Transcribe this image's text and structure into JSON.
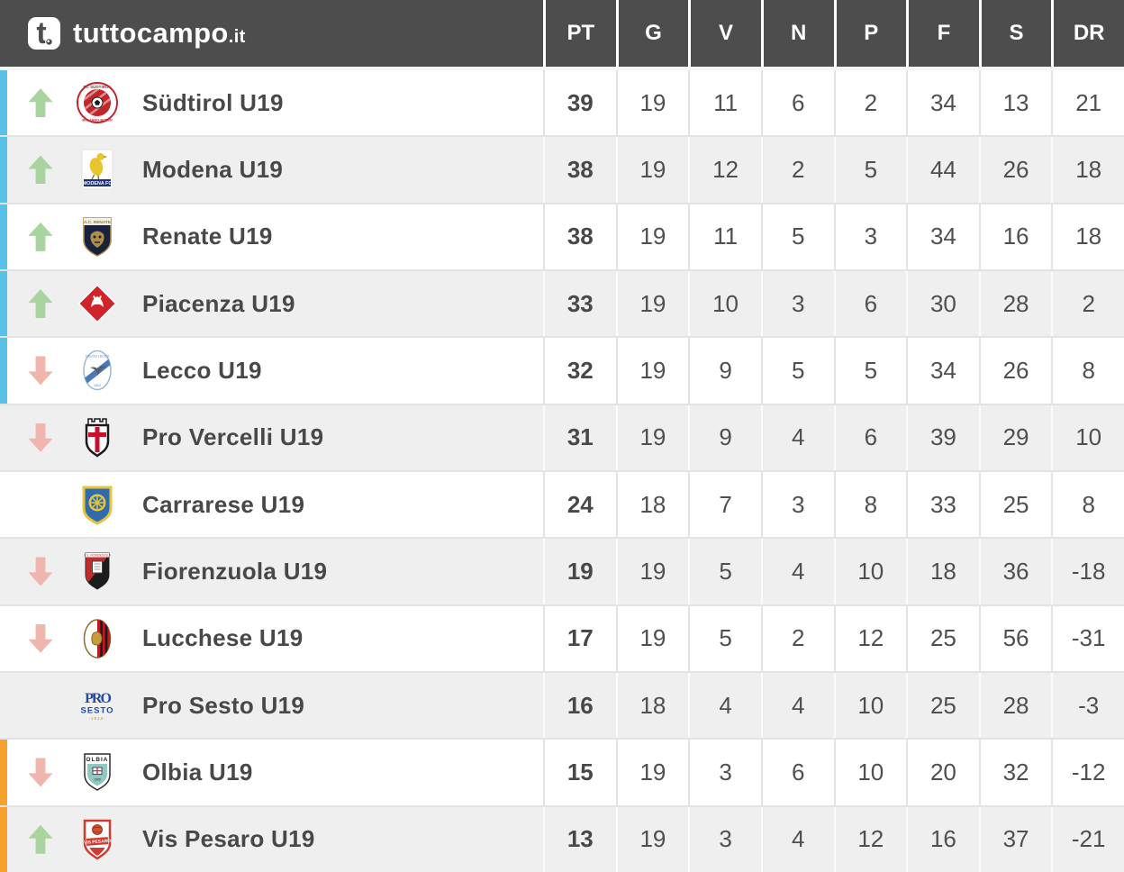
{
  "brand": {
    "name": "tuttocampo",
    "tld": ".it"
  },
  "columns": [
    "PT",
    "G",
    "V",
    "N",
    "P",
    "F",
    "S",
    "DR"
  ],
  "colors": {
    "header_bg": "#4d4d4d",
    "row_bg": "#ffffff",
    "row_alt_bg": "#efefef",
    "separator": "#e3e3e3",
    "promotion_stripe": "#58c1e8",
    "relegation_stripe": "#f4a12d",
    "up_arrow": "#a9d4a0",
    "down_arrow": "#f0b5ac",
    "header_text": "#ffffff",
    "team_text": "#484848",
    "stat_text": "#4f4f4f"
  },
  "rows": [
    {
      "team": "Südtirol U19",
      "logo": "sudtirol-crest",
      "movement": "up",
      "zone": "promotion",
      "stats": [
        39,
        19,
        11,
        6,
        2,
        34,
        13,
        21
      ]
    },
    {
      "team": "Modena U19",
      "logo": "modena-crest",
      "movement": "up",
      "zone": "promotion",
      "stats": [
        38,
        19,
        12,
        2,
        5,
        44,
        26,
        18
      ]
    },
    {
      "team": "Renate U19",
      "logo": "renate-crest",
      "movement": "up",
      "zone": "promotion",
      "stats": [
        38,
        19,
        11,
        5,
        3,
        34,
        16,
        18
      ]
    },
    {
      "team": "Piacenza U19",
      "logo": "piacenza-crest",
      "movement": "up",
      "zone": "promotion",
      "stats": [
        33,
        19,
        10,
        3,
        6,
        30,
        28,
        2
      ]
    },
    {
      "team": "Lecco U19",
      "logo": "lecco-crest",
      "movement": "down",
      "zone": "promotion",
      "stats": [
        32,
        19,
        9,
        5,
        5,
        34,
        26,
        8
      ]
    },
    {
      "team": "Pro Vercelli U19",
      "logo": "pro-vercelli-crest",
      "movement": "down",
      "zone": "none",
      "stats": [
        31,
        19,
        9,
        4,
        6,
        39,
        29,
        10
      ]
    },
    {
      "team": "Carrarese U19",
      "logo": "carrarese-crest",
      "movement": "none",
      "zone": "none",
      "stats": [
        24,
        18,
        7,
        3,
        8,
        33,
        25,
        8
      ]
    },
    {
      "team": "Fiorenzuola U19",
      "logo": "fiorenzuola-crest",
      "movement": "down",
      "zone": "none",
      "stats": [
        19,
        19,
        5,
        4,
        10,
        18,
        36,
        -18
      ]
    },
    {
      "team": "Lucchese U19",
      "logo": "lucchese-crest",
      "movement": "down",
      "zone": "none",
      "stats": [
        17,
        19,
        5,
        2,
        12,
        25,
        56,
        -31
      ]
    },
    {
      "team": "Pro Sesto U19",
      "logo": "pro-sesto-crest",
      "movement": "none",
      "zone": "none",
      "stats": [
        16,
        18,
        4,
        4,
        10,
        25,
        28,
        -3
      ]
    },
    {
      "team": "Olbia U19",
      "logo": "olbia-crest",
      "movement": "down",
      "zone": "relegation",
      "stats": [
        15,
        19,
        3,
        6,
        10,
        20,
        32,
        -12
      ]
    },
    {
      "team": "Vis Pesaro U19",
      "logo": "vis-pesaro-crest",
      "movement": "up",
      "zone": "relegation",
      "stats": [
        13,
        19,
        3,
        4,
        12,
        16,
        37,
        -21
      ]
    }
  ]
}
